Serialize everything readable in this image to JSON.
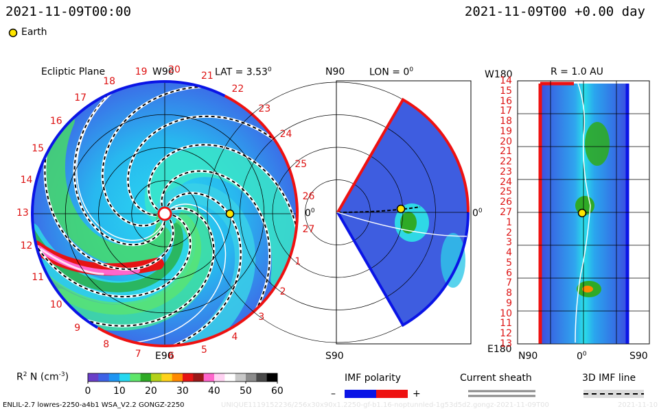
{
  "header": {
    "left_time": "2021-11-09T00:00",
    "right_time": "2021-11-09T00 +0.00 day",
    "earth_legend": "Earth"
  },
  "ecliptic": {
    "title": "Ecliptic Plane",
    "top_label": "W90",
    "lat_label": "LAT = 3.53",
    "lat_sup": "0",
    "bottom_label": "E90",
    "right_label": "0",
    "right_sup": "0",
    "carrington_labels": [
      "19",
      "20",
      "21",
      "22",
      "23",
      "24",
      "25",
      "26",
      "27",
      "1",
      "2",
      "3",
      "4",
      "5",
      "6",
      "7",
      "8",
      "9",
      "10",
      "11",
      "12",
      "13",
      "14",
      "15",
      "16",
      "17",
      "18"
    ]
  },
  "meridional": {
    "top_left": "N90",
    "title": "LON = 0",
    "title_sup": "0",
    "bottom_left": "S90",
    "right_label": "0",
    "right_sup": "0"
  },
  "radial": {
    "top_left": "W180",
    "title": "R = 1.0 AU",
    "bottom_left": "E180",
    "x_ticks": [
      "N90",
      "0",
      "S90"
    ],
    "x_sup": "0",
    "y_labels": [
      "14",
      "15",
      "16",
      "17",
      "18",
      "19",
      "20",
      "21",
      "22",
      "23",
      "24",
      "25",
      "26",
      "27",
      "1",
      "2",
      "3",
      "4",
      "5",
      "6",
      "7",
      "8",
      "9",
      "10",
      "11",
      "12",
      "13"
    ]
  },
  "colorbar": {
    "label": "R",
    "label_sup": "2",
    "label_rest": " N (cm",
    "label_exp": "-3",
    "label_end": ")",
    "ticks": [
      "0",
      "10",
      "20",
      "30",
      "40",
      "50",
      "60"
    ],
    "colors": [
      "#6a3fc8",
      "#3e62e6",
      "#1f95f2",
      "#25d8f0",
      "#5ee66a",
      "#2faa26",
      "#b4d11a",
      "#ffd21a",
      "#ff8a00",
      "#e61414",
      "#991818",
      "#ff66cc",
      "#ffd2f2",
      "#ffffff",
      "#c8c8c8",
      "#8c8c8c",
      "#4a4a4a",
      "#000000"
    ]
  },
  "imf": {
    "title": "IMF polarity",
    "minus": "–",
    "plus": "+",
    "neg_color": "#0a14e6",
    "pos_color": "#ee1111"
  },
  "sheath": {
    "title": "Current sheath"
  },
  "imf3d": {
    "title": "3D IMF line"
  },
  "footer": {
    "model": "ENLIL-2.7 lowres-2250-a4b1 WSA_V2.2 GONGZ-2250",
    "run_id": "UNIQUE1119152236/256x30x90x1.2250-gf-b1.16-noptunnled-1g53d5d2.gongz-2021-11-09T00",
    "date": "2021-11-10"
  },
  "chart_data": [
    {
      "type": "heatmap",
      "title": "Ecliptic Plane",
      "view": "polar ecliptic, 0-2 AU",
      "earth": {
        "lon_deg": 0,
        "r_au": 1.0
      },
      "legend": [
        "Earth"
      ]
    },
    {
      "type": "heatmap",
      "title": "LON = 0",
      "view": "meridional cut, latitude N90 to S90",
      "earth": {
        "lat_deg": 3.53,
        "r_au": 1.0
      }
    },
    {
      "type": "heatmap",
      "title": "R = 1.0 AU",
      "view": "latitude vs Carrington longitude",
      "x_labels": [
        "N90",
        "0",
        "S90"
      ],
      "y_labels_left": [
        "W180",
        "E180"
      ],
      "colorbar": {
        "variable": "R2 N (cm-3)",
        "range": [
          0,
          60
        ],
        "ticks": [
          0,
          10,
          20,
          30,
          40,
          50,
          60
        ]
      }
    }
  ]
}
